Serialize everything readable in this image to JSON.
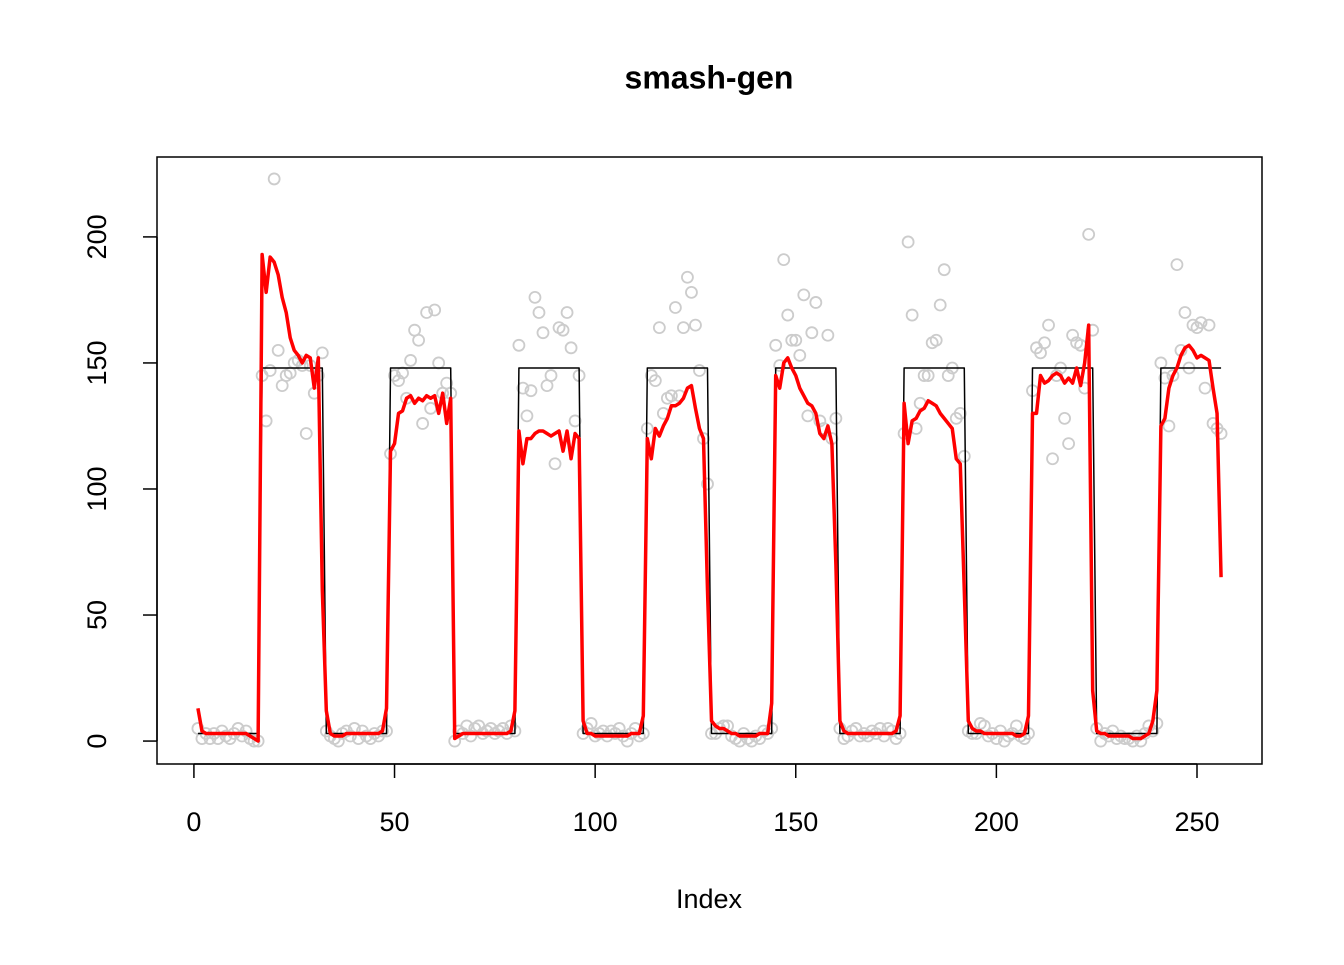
{
  "chart_data": {
    "type": "scatter",
    "title": "smash-gen",
    "x_label": "Index",
    "xlim": [
      -9.2,
      266.2
    ],
    "xticks": [
      0,
      50,
      100,
      150,
      200,
      250
    ],
    "ylim": [
      -9.1,
      231.7
    ],
    "yticks": [
      0,
      50,
      100,
      150,
      200
    ],
    "x": [
      1,
      2,
      3,
      4,
      5,
      6,
      7,
      8,
      9,
      10,
      11,
      12,
      13,
      14,
      15,
      16,
      17,
      18,
      19,
      20,
      21,
      22,
      23,
      24,
      25,
      26,
      27,
      28,
      29,
      30,
      31,
      32,
      33,
      34,
      35,
      36,
      37,
      38,
      39,
      40,
      41,
      42,
      43,
      44,
      45,
      46,
      47,
      48,
      49,
      50,
      51,
      52,
      53,
      54,
      55,
      56,
      57,
      58,
      59,
      60,
      61,
      62,
      63,
      64,
      65,
      66,
      67,
      68,
      69,
      70,
      71,
      72,
      73,
      74,
      75,
      76,
      77,
      78,
      79,
      80,
      81,
      82,
      83,
      84,
      85,
      86,
      87,
      88,
      89,
      90,
      91,
      92,
      93,
      94,
      95,
      96,
      97,
      98,
      99,
      100,
      101,
      102,
      103,
      104,
      105,
      106,
      107,
      108,
      109,
      110,
      111,
      112,
      113,
      114,
      115,
      116,
      117,
      118,
      119,
      120,
      121,
      122,
      123,
      124,
      125,
      126,
      127,
      128,
      129,
      130,
      131,
      132,
      133,
      134,
      135,
      136,
      137,
      138,
      139,
      140,
      141,
      142,
      143,
      144,
      145,
      146,
      147,
      148,
      149,
      150,
      151,
      152,
      153,
      154,
      155,
      156,
      157,
      158,
      159,
      160,
      161,
      162,
      163,
      164,
      165,
      166,
      167,
      168,
      169,
      170,
      171,
      172,
      173,
      174,
      175,
      176,
      177,
      178,
      179,
      180,
      181,
      182,
      183,
      184,
      185,
      186,
      187,
      188,
      189,
      190,
      191,
      192,
      193,
      194,
      195,
      196,
      197,
      198,
      199,
      200,
      201,
      202,
      203,
      204,
      205,
      206,
      207,
      208,
      209,
      210,
      211,
      212,
      213,
      214,
      215,
      216,
      217,
      218,
      219,
      220,
      221,
      222,
      223,
      224,
      225,
      226,
      227,
      228,
      229,
      230,
      231,
      232,
      233,
      234,
      235,
      236,
      237,
      238,
      239,
      240,
      241,
      242,
      243,
      244,
      245,
      246,
      247,
      248,
      249,
      250,
      251,
      252,
      253,
      254,
      255,
      256
    ],
    "series": [
      {
        "style": "points",
        "color": "#cccccc",
        "values": [
          5,
          1,
          3,
          1,
          3,
          1,
          4,
          2,
          1,
          3,
          5,
          2,
          4,
          1,
          0,
          0,
          145,
          127,
          147,
          223,
          155,
          141,
          145,
          146,
          150,
          151,
          149,
          122,
          149,
          138,
          145,
          154,
          4,
          2,
          1,
          0,
          3,
          4,
          2,
          5,
          1,
          4,
          2,
          1,
          3,
          2,
          4,
          4,
          114,
          145,
          143,
          146,
          136,
          151,
          163,
          159,
          126,
          170,
          132,
          171,
          150,
          138,
          142,
          138,
          0,
          4,
          3,
          6,
          2,
          5,
          6,
          3,
          4,
          5,
          3,
          4,
          5,
          3,
          6,
          4,
          157,
          140,
          129,
          139,
          176,
          170,
          162,
          141,
          145,
          110,
          164,
          163,
          170,
          156,
          127,
          145,
          3,
          5,
          7,
          2,
          3,
          4,
          2,
          4,
          3,
          5,
          2,
          0,
          3,
          5,
          2,
          3,
          124,
          145,
          143,
          164,
          130,
          136,
          137,
          172,
          137,
          164,
          184,
          178,
          165,
          147,
          120,
          102,
          3,
          3,
          5,
          6,
          6,
          2,
          1,
          0,
          3,
          1,
          0,
          2,
          1,
          4,
          3,
          5,
          157,
          149,
          191,
          169,
          159,
          159,
          153,
          177,
          129,
          162,
          174,
          127,
          124,
          161,
          120,
          128,
          5,
          1,
          2,
          4,
          5,
          2,
          3,
          2,
          4,
          3,
          5,
          2,
          5,
          4,
          1,
          3,
          122,
          198,
          169,
          124,
          134,
          145,
          145,
          158,
          159,
          173,
          187,
          145,
          148,
          128,
          130,
          113,
          4,
          3,
          3,
          7,
          6,
          2,
          3,
          1,
          4,
          0,
          2,
          3,
          6,
          2,
          1,
          3,
          139,
          156,
          154,
          158,
          165,
          112,
          145,
          148,
          128,
          118,
          161,
          158,
          157,
          140,
          201,
          163,
          5,
          0,
          3,
          2,
          4,
          1,
          2,
          1,
          1,
          0,
          2,
          0,
          3,
          6,
          4,
          7,
          150,
          144,
          125,
          145,
          189,
          155,
          170,
          148,
          165,
          164,
          166,
          140,
          165,
          126,
          124,
          122
        ]
      },
      {
        "style": "line",
        "color": "#000000",
        "values": [
          3,
          3,
          3,
          3,
          3,
          3,
          3,
          3,
          3,
          3,
          3,
          3,
          3,
          3,
          3,
          3,
          148,
          148,
          148,
          148,
          148,
          148,
          148,
          148,
          148,
          148,
          148,
          148,
          148,
          148,
          148,
          148,
          3,
          3,
          3,
          3,
          3,
          3,
          3,
          3,
          3,
          3,
          3,
          3,
          3,
          3,
          3,
          3,
          148,
          148,
          148,
          148,
          148,
          148,
          148,
          148,
          148,
          148,
          148,
          148,
          148,
          148,
          148,
          148,
          3,
          3,
          3,
          3,
          3,
          3,
          3,
          3,
          3,
          3,
          3,
          3,
          3,
          3,
          3,
          3,
          148,
          148,
          148,
          148,
          148,
          148,
          148,
          148,
          148,
          148,
          148,
          148,
          148,
          148,
          148,
          148,
          3,
          3,
          3,
          3,
          3,
          3,
          3,
          3,
          3,
          3,
          3,
          3,
          3,
          3,
          3,
          3,
          148,
          148,
          148,
          148,
          148,
          148,
          148,
          148,
          148,
          148,
          148,
          148,
          148,
          148,
          148,
          148,
          3,
          3,
          3,
          3,
          3,
          3,
          3,
          3,
          3,
          3,
          3,
          3,
          3,
          3,
          3,
          3,
          148,
          148,
          148,
          148,
          148,
          148,
          148,
          148,
          148,
          148,
          148,
          148,
          148,
          148,
          148,
          148,
          3,
          3,
          3,
          3,
          3,
          3,
          3,
          3,
          3,
          3,
          3,
          3,
          3,
          3,
          3,
          3,
          148,
          148,
          148,
          148,
          148,
          148,
          148,
          148,
          148,
          148,
          148,
          148,
          148,
          148,
          148,
          148,
          3,
          3,
          3,
          3,
          3,
          3,
          3,
          3,
          3,
          3,
          3,
          3,
          3,
          3,
          3,
          3,
          148,
          148,
          148,
          148,
          148,
          148,
          148,
          148,
          148,
          148,
          148,
          148,
          148,
          148,
          148,
          148,
          3,
          3,
          3,
          3,
          3,
          3,
          3,
          3,
          3,
          3,
          3,
          3,
          3,
          3,
          3,
          3,
          148,
          148,
          148,
          148,
          148,
          148,
          148,
          148,
          148,
          148,
          148,
          148,
          148,
          148,
          148,
          148
        ]
      },
      {
        "style": "bold-line",
        "color": "#ff0000",
        "values": [
          13,
          4,
          3,
          3,
          3,
          3,
          3,
          3,
          3,
          3,
          3,
          3,
          3,
          2,
          1,
          0,
          193,
          178,
          192,
          190,
          185,
          176,
          170,
          160,
          155,
          153,
          150,
          153,
          152,
          140,
          152,
          60,
          12,
          3,
          2,
          2,
          2,
          3,
          3,
          3,
          3,
          3,
          3,
          3,
          3,
          3,
          4,
          13,
          115,
          118,
          130,
          131,
          136,
          137,
          134,
          136,
          135,
          137,
          136,
          137,
          130,
          138,
          126,
          136,
          1,
          2,
          3,
          3,
          3,
          3,
          3,
          3,
          3,
          3,
          3,
          3,
          3,
          3,
          4,
          12,
          123,
          110,
          120,
          120,
          122,
          123,
          123,
          122,
          121,
          122,
          123,
          115,
          123,
          112,
          122,
          120,
          8,
          3,
          3,
          2,
          2,
          2,
          2,
          2,
          2,
          2,
          2,
          2,
          3,
          3,
          3,
          10,
          120,
          112,
          124,
          121,
          125,
          128,
          133,
          133,
          134,
          136,
          140,
          141,
          132,
          124,
          120,
          60,
          8,
          6,
          5,
          5,
          4,
          3,
          3,
          2,
          2,
          2,
          2,
          2,
          3,
          3,
          3,
          15,
          145,
          140,
          150,
          152,
          148,
          145,
          140,
          137,
          134,
          133,
          130,
          122,
          120,
          125,
          118,
          70,
          8,
          4,
          3,
          3,
          3,
          3,
          3,
          3,
          3,
          3,
          3,
          3,
          3,
          3,
          4,
          10,
          134,
          118,
          127,
          128,
          131,
          132,
          135,
          134,
          133,
          130,
          128,
          126,
          124,
          112,
          110,
          60,
          8,
          5,
          4,
          4,
          3,
          3,
          3,
          3,
          3,
          3,
          3,
          3,
          2,
          2,
          3,
          10,
          130,
          130,
          145,
          142,
          143,
          145,
          146,
          145,
          142,
          144,
          142,
          148,
          141,
          150,
          165,
          20,
          4,
          3,
          3,
          2,
          2,
          2,
          2,
          2,
          2,
          1,
          1,
          1,
          2,
          3,
          8,
          20,
          125,
          128,
          140,
          145,
          148,
          153,
          156,
          157,
          155,
          152,
          153,
          152,
          151,
          140,
          130,
          65
        ]
      }
    ]
  }
}
